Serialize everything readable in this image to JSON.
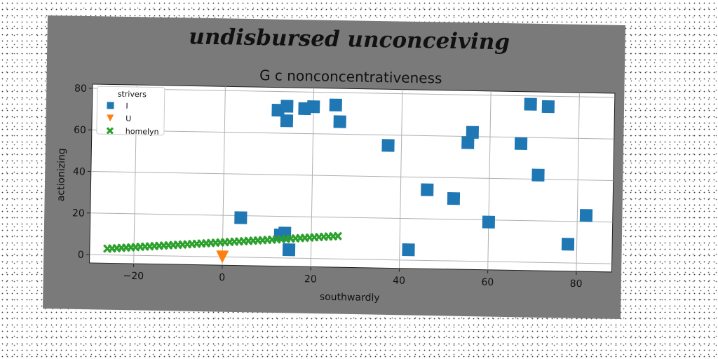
{
  "chart_data": {
    "type": "scatter",
    "suptitle": "undisbursed unconceiving",
    "title": "G c nonconcentrativeness",
    "xlabel": "southwardly",
    "ylabel": "actionizing",
    "xlim": [
      -30,
      88
    ],
    "ylim": [
      -4,
      82
    ],
    "xticks": [
      -20,
      0,
      20,
      40,
      60,
      80
    ],
    "yticks": [
      0,
      20,
      40,
      60,
      80
    ],
    "grid": true,
    "legend": {
      "title": "strivers",
      "placement": "top-left"
    },
    "series": [
      {
        "name": "I",
        "marker": "square",
        "color": "#1f77b4",
        "points": [
          [
            4,
            19
          ],
          [
            12,
            71
          ],
          [
            13,
            11
          ],
          [
            14,
            12
          ],
          [
            14,
            66
          ],
          [
            14,
            73
          ],
          [
            15,
            4
          ],
          [
            18,
            72
          ],
          [
            20,
            73
          ],
          [
            25,
            74
          ],
          [
            26,
            66
          ],
          [
            37,
            55
          ],
          [
            42,
            5
          ],
          [
            46,
            34
          ],
          [
            52,
            30
          ],
          [
            55,
            57
          ],
          [
            56,
            62
          ],
          [
            60,
            19
          ],
          [
            67,
            57
          ],
          [
            69,
            76
          ],
          [
            71,
            42
          ],
          [
            73,
            75
          ],
          [
            78,
            9
          ],
          [
            82,
            23
          ]
        ]
      },
      {
        "name": "U",
        "marker": "triangle-down",
        "color": "#ff7f0e",
        "points": [
          [
            0,
            0
          ]
        ]
      },
      {
        "name": "homelyn",
        "marker": "x",
        "color": "#2ca02c",
        "x_start": -26,
        "x_end": 26,
        "y_start": 3,
        "y_end": 11,
        "count": 50
      }
    ]
  }
}
